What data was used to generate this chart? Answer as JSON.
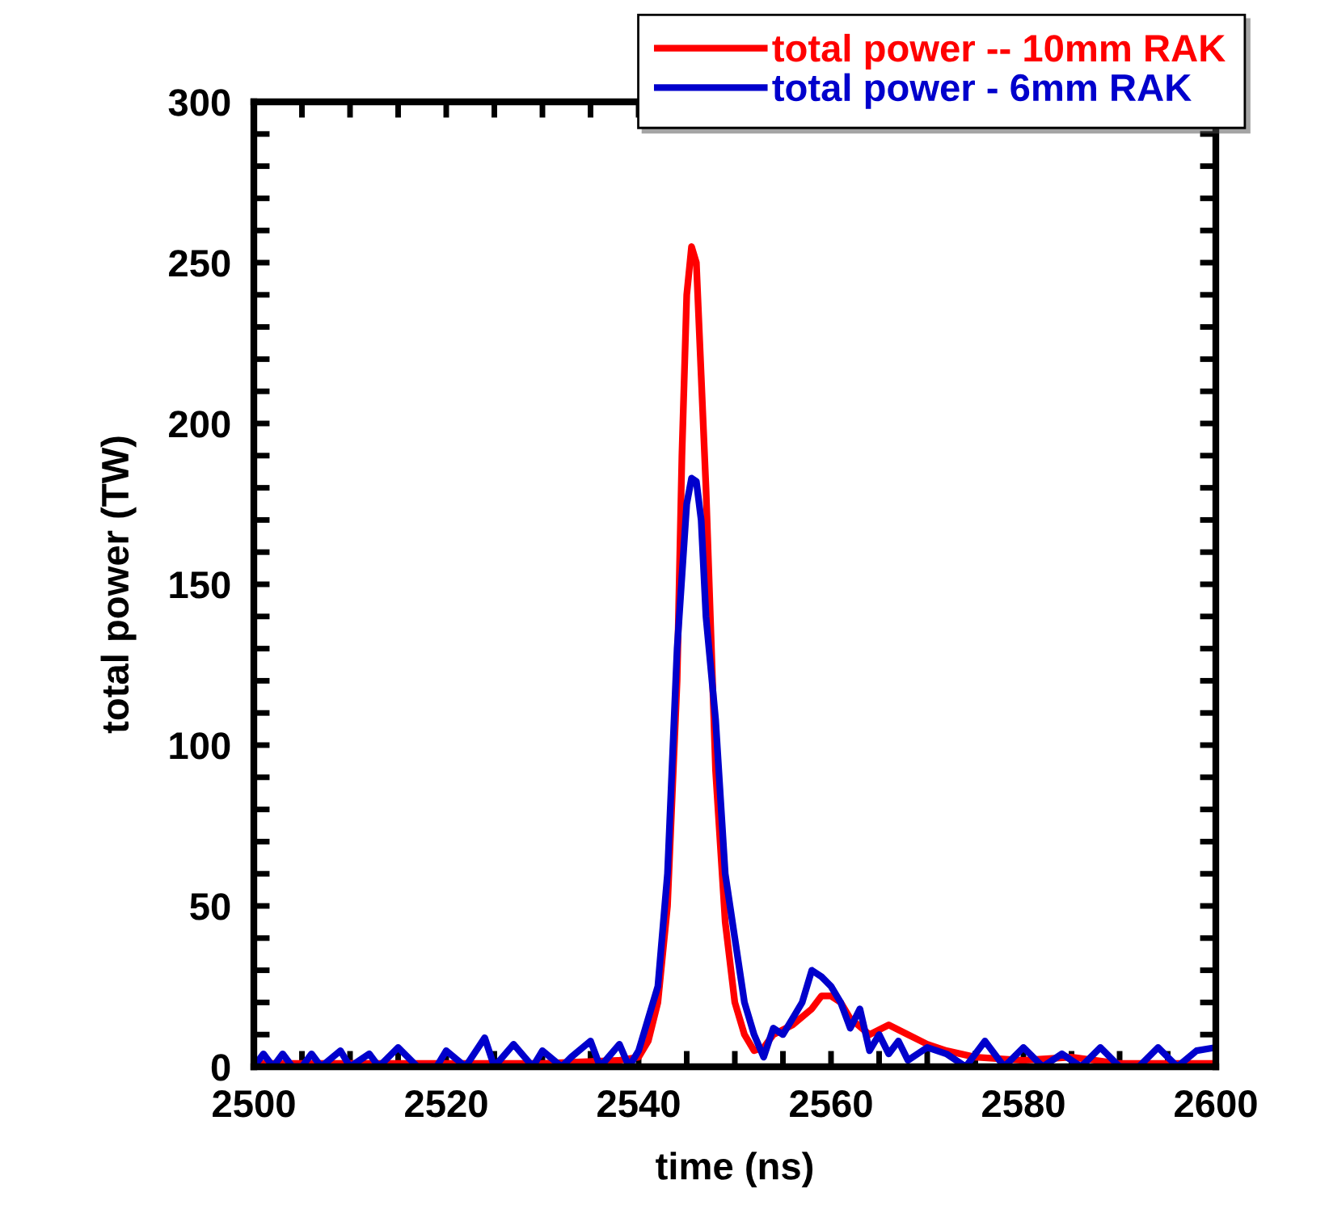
{
  "chart_data": {
    "type": "line",
    "xlabel": "time (ns)",
    "ylabel": "total power (TW)",
    "xlim": [
      2500,
      2600
    ],
    "ylim": [
      0,
      300
    ],
    "xticks": [
      2500,
      {
        "value": 2505,
        "label": null
      },
      {
        "value": 2510,
        "label": null
      },
      {
        "value": 2515,
        "label": null
      },
      2520,
      {
        "value": 2525,
        "label": null
      },
      {
        "value": 2530,
        "label": null
      },
      {
        "value": 2535,
        "label": null
      },
      2540,
      {
        "value": 2545,
        "label": null
      },
      {
        "value": 2550,
        "label": null
      },
      {
        "value": 2555,
        "label": null
      },
      2560,
      {
        "value": 2565,
        "label": null
      },
      {
        "value": 2570,
        "label": null
      },
      {
        "value": 2575,
        "label": null
      },
      2580,
      {
        "value": 2585,
        "label": null
      },
      {
        "value": 2590,
        "label": null
      },
      {
        "value": 2595,
        "label": null
      },
      2600
    ],
    "yticks": [
      0,
      {
        "value": 10,
        "label": null
      },
      {
        "value": 20,
        "label": null
      },
      {
        "value": 30,
        "label": null
      },
      {
        "value": 40,
        "label": null
      },
      50,
      {
        "value": 60,
        "label": null
      },
      {
        "value": 70,
        "label": null
      },
      {
        "value": 80,
        "label": null
      },
      {
        "value": 90,
        "label": null
      },
      100,
      {
        "value": 110,
        "label": null
      },
      {
        "value": 120,
        "label": null
      },
      {
        "value": 130,
        "label": null
      },
      {
        "value": 140,
        "label": null
      },
      150,
      {
        "value": 160,
        "label": null
      },
      {
        "value": 170,
        "label": null
      },
      {
        "value": 180,
        "label": null
      },
      {
        "value": 190,
        "label": null
      },
      200,
      {
        "value": 210,
        "label": null
      },
      {
        "value": 220,
        "label": null
      },
      {
        "value": 230,
        "label": null
      },
      {
        "value": 240,
        "label": null
      },
      250,
      {
        "value": 260,
        "label": null
      },
      {
        "value": 270,
        "label": null
      },
      {
        "value": 280,
        "label": null
      },
      {
        "value": 290,
        "label": null
      },
      300
    ],
    "legend": "top right",
    "grid": false,
    "line_style": "solid",
    "marker": "none",
    "series": [
      {
        "name": "total power -- 10mm RAK",
        "color": "#ff0000",
        "x": [
          2500,
          2510,
          2520,
          2530,
          2538,
          2540,
          2541,
          2542,
          2543,
          2544,
          2544.5,
          2545,
          2545.5,
          2546,
          2546.5,
          2547,
          2548,
          2549,
          2550,
          2551,
          2552,
          2553,
          2554,
          2556,
          2558,
          2559,
          2560,
          2561,
          2562,
          2564,
          2566,
          2568,
          2570,
          2572,
          2575,
          2580,
          2585,
          2590,
          2600
        ],
        "values": [
          1,
          1,
          1,
          1,
          2,
          3,
          8,
          20,
          50,
          120,
          190,
          240,
          255,
          250,
          215,
          180,
          92,
          45,
          20,
          10,
          5,
          6,
          10,
          13,
          18,
          22,
          22,
          20,
          15,
          10,
          13,
          10,
          7,
          5,
          3,
          2,
          3,
          1,
          1
        ]
      },
      {
        "name": "total power - 6mm RAK",
        "color": "#0000cc",
        "x": [
          2500,
          2501,
          2502,
          2503,
          2504,
          2505,
          2506,
          2507,
          2509,
          2510,
          2512,
          2513,
          2515,
          2517,
          2519,
          2520,
          2522,
          2524,
          2525,
          2527,
          2529,
          2530,
          2532,
          2533,
          2535,
          2536,
          2538,
          2539,
          2540,
          2541,
          2542,
          2543,
          2544,
          2545,
          2545.5,
          2546,
          2546.5,
          2547,
          2548,
          2549,
          2550,
          2551,
          2552,
          2553,
          2554,
          2555,
          2556,
          2557,
          2558,
          2559,
          2560,
          2561,
          2562,
          2563,
          2564,
          2565,
          2566,
          2567,
          2568,
          2570,
          2572,
          2574,
          2576,
          2578,
          2580,
          2582,
          2584,
          2586,
          2588,
          2590,
          2592,
          2594,
          2596,
          2598,
          2600
        ],
        "values": [
          0,
          4,
          0,
          4,
          0,
          0,
          4,
          0,
          5,
          0,
          4,
          0,
          6,
          0,
          0,
          5,
          0,
          9,
          0,
          7,
          0,
          5,
          0,
          3,
          8,
          0,
          7,
          0,
          5,
          15,
          25,
          60,
          130,
          175,
          183,
          182,
          170,
          140,
          108,
          60,
          40,
          20,
          10,
          3,
          12,
          10,
          15,
          20,
          30,
          28,
          25,
          20,
          12,
          18,
          5,
          10,
          4,
          8,
          2,
          6,
          4,
          0,
          8,
          0,
          6,
          0,
          4,
          0,
          6,
          0,
          0,
          6,
          0,
          5,
          6
        ]
      }
    ]
  }
}
